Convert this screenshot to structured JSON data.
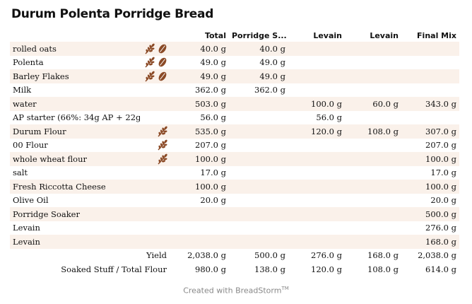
{
  "title": "Durum Polenta Porridge Bread",
  "columns": [
    "Total",
    "Porridge S...",
    "Levain",
    "Levain",
    "Final Mix"
  ],
  "rows": [
    {
      "name": "rolled oats",
      "icons": [
        "wheat-icon",
        "grain-icon"
      ],
      "values": [
        "40.0 g",
        "40.0 g",
        "",
        "",
        ""
      ]
    },
    {
      "name": "Polenta",
      "icons": [
        "wheat-icon",
        "grain-icon"
      ],
      "values": [
        "49.0 g",
        "49.0 g",
        "",
        "",
        ""
      ]
    },
    {
      "name": "Barley Flakes",
      "icons": [
        "wheat-icon",
        "grain-icon"
      ],
      "values": [
        "49.0 g",
        "49.0 g",
        "",
        "",
        ""
      ]
    },
    {
      "name": "Milk",
      "icons": [],
      "values": [
        "362.0 g",
        "362.0 g",
        "",
        "",
        ""
      ]
    },
    {
      "name": "water",
      "icons": [],
      "values": [
        "503.0 g",
        "",
        "100.0 g",
        "60.0 g",
        "343.0 g"
      ]
    },
    {
      "name": "AP starter (66%: 34g AP + 22g water)",
      "icons": [],
      "values": [
        "56.0 g",
        "",
        "56.0 g",
        "",
        ""
      ]
    },
    {
      "name": "Durum Flour",
      "icons": [
        "wheat-icon"
      ],
      "values": [
        "535.0 g",
        "",
        "120.0 g",
        "108.0 g",
        "307.0 g"
      ]
    },
    {
      "name": "00 Flour",
      "icons": [
        "wheat-icon"
      ],
      "values": [
        "207.0 g",
        "",
        "",
        "",
        "207.0 g"
      ]
    },
    {
      "name": "whole wheat flour",
      "icons": [
        "wheat-icon"
      ],
      "values": [
        "100.0 g",
        "",
        "",
        "",
        "100.0 g"
      ]
    },
    {
      "name": "salt",
      "icons": [],
      "values": [
        "17.0 g",
        "",
        "",
        "",
        "17.0 g"
      ]
    },
    {
      "name": "Fresh Riccotta Cheese",
      "icons": [],
      "values": [
        "100.0 g",
        "",
        "",
        "",
        "100.0 g"
      ]
    },
    {
      "name": "Olive Oil",
      "icons": [],
      "values": [
        "20.0 g",
        "",
        "",
        "",
        "20.0 g"
      ]
    },
    {
      "name": "Porridge Soaker",
      "icons": [],
      "values": [
        "",
        "",
        "",
        "",
        "500.0 g"
      ]
    },
    {
      "name": "Levain",
      "icons": [],
      "values": [
        "",
        "",
        "",
        "",
        "276.0 g"
      ]
    },
    {
      "name": "Levain",
      "icons": [],
      "values": [
        "",
        "",
        "",
        "",
        "168.0 g"
      ]
    }
  ],
  "summary": [
    {
      "label": "Yield",
      "values": [
        "2,038.0 g",
        "500.0 g",
        "276.0 g",
        "168.0 g",
        "2,038.0 g"
      ]
    },
    {
      "label": "Soaked Stuff / Total Flour",
      "values": [
        "980.0 g",
        "138.0 g",
        "120.0 g",
        "108.0 g",
        "614.0 g"
      ]
    }
  ],
  "footer": {
    "text": "Created with BreadStorm",
    "mark": "TM"
  },
  "colors": {
    "row_shade": "#faf1ea",
    "icon": "#8b4a26"
  }
}
